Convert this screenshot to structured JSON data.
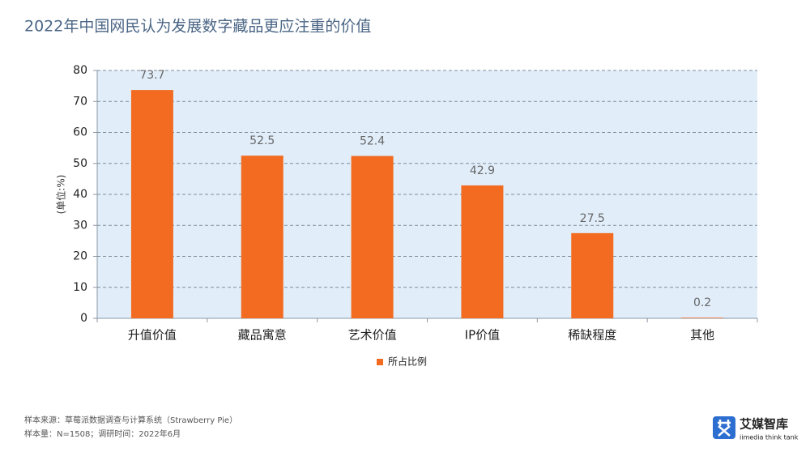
{
  "chart_data": {
    "type": "bar",
    "title": "2022年中国网民认为发展数字藏品更应注重的价值",
    "y_label": "(单位:%)",
    "categories": [
      "升值价值",
      "藏品寓意",
      "艺术价值",
      "IP价值",
      "稀缺程度",
      "其他"
    ],
    "series": [
      {
        "name": "所占比例",
        "color": "#f26b21",
        "values": [
          73.7,
          52.5,
          52.4,
          42.9,
          27.5,
          0.2
        ]
      }
    ],
    "ylim": [
      0,
      80
    ],
    "yticks": [
      0,
      10,
      20,
      30,
      40,
      50,
      60,
      70,
      80
    ],
    "grid": true,
    "legend": "bottom"
  },
  "footer": {
    "notes": [
      "样本来源：草莓派数据调查与计算系统（Strawberry Pie）",
      "样本量：N=1508；调研时间：2022年6月"
    ]
  },
  "logo": {
    "name": "艾媒智库",
    "tagline": "iimedia think tank"
  }
}
